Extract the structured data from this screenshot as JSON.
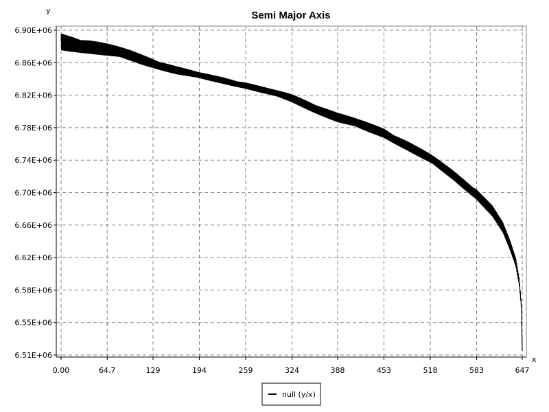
{
  "chart_data": {
    "type": "line",
    "title": "Semi Major Axis",
    "xlabel": "x",
    "ylabel": "y",
    "xlim": [
      0,
      647
    ],
    "ylim": [
      6510000,
      6900000
    ],
    "grid": true,
    "legend_position": "bottom-center",
    "x_ticks": [
      "0.00",
      "64.7",
      "129",
      "194",
      "259",
      "324",
      "388",
      "453",
      "518",
      "583",
      "647"
    ],
    "x_tick_values": [
      0,
      64.7,
      129,
      194,
      259,
      324,
      388,
      453,
      518,
      583,
      647
    ],
    "y_ticks": [
      "6.51E+06",
      "6.55E+06",
      "6.58E+06",
      "6.62E+06",
      "6.66E+06",
      "6.70E+06",
      "6.74E+06",
      "6.78E+06",
      "6.82E+06",
      "6.86E+06",
      "6.90E+06"
    ],
    "y_tick_values": [
      6510000,
      6549000,
      6588000,
      6627000,
      6666000,
      6705000,
      6744000,
      6783000,
      6822000,
      6861000,
      6900000
    ],
    "series": [
      {
        "name": "null (y/x)",
        "color": "#000000",
        "x": [
          0,
          20,
          40,
          64.7,
          97,
          129,
          162,
          194,
          226,
          259,
          291,
          324,
          356,
          388,
          420,
          453,
          485,
          518,
          550,
          583,
          605,
          620,
          630,
          638,
          643,
          646,
          647
        ],
        "y_center": [
          6886000,
          6884000,
          6881000,
          6876000,
          6869000,
          6861000,
          6852000,
          6845000,
          6840000,
          6834000,
          6826000,
          6818000,
          6807000,
          6795000,
          6786000,
          6777000,
          6762000,
          6745000,
          6726000,
          6704000,
          6683000,
          6662000,
          6640000,
          6620000,
          6596000,
          6566000,
          6515000
        ],
        "y_amplitude": [
          11000,
          10000,
          9000,
          8000,
          7000,
          6000,
          5000,
          4000,
          4000,
          4000,
          4000,
          5000,
          6000,
          6000,
          6000,
          6000,
          6000,
          6000,
          6000,
          7000,
          7000,
          7000,
          7000,
          6000,
          5000,
          3000,
          0
        ]
      }
    ]
  }
}
